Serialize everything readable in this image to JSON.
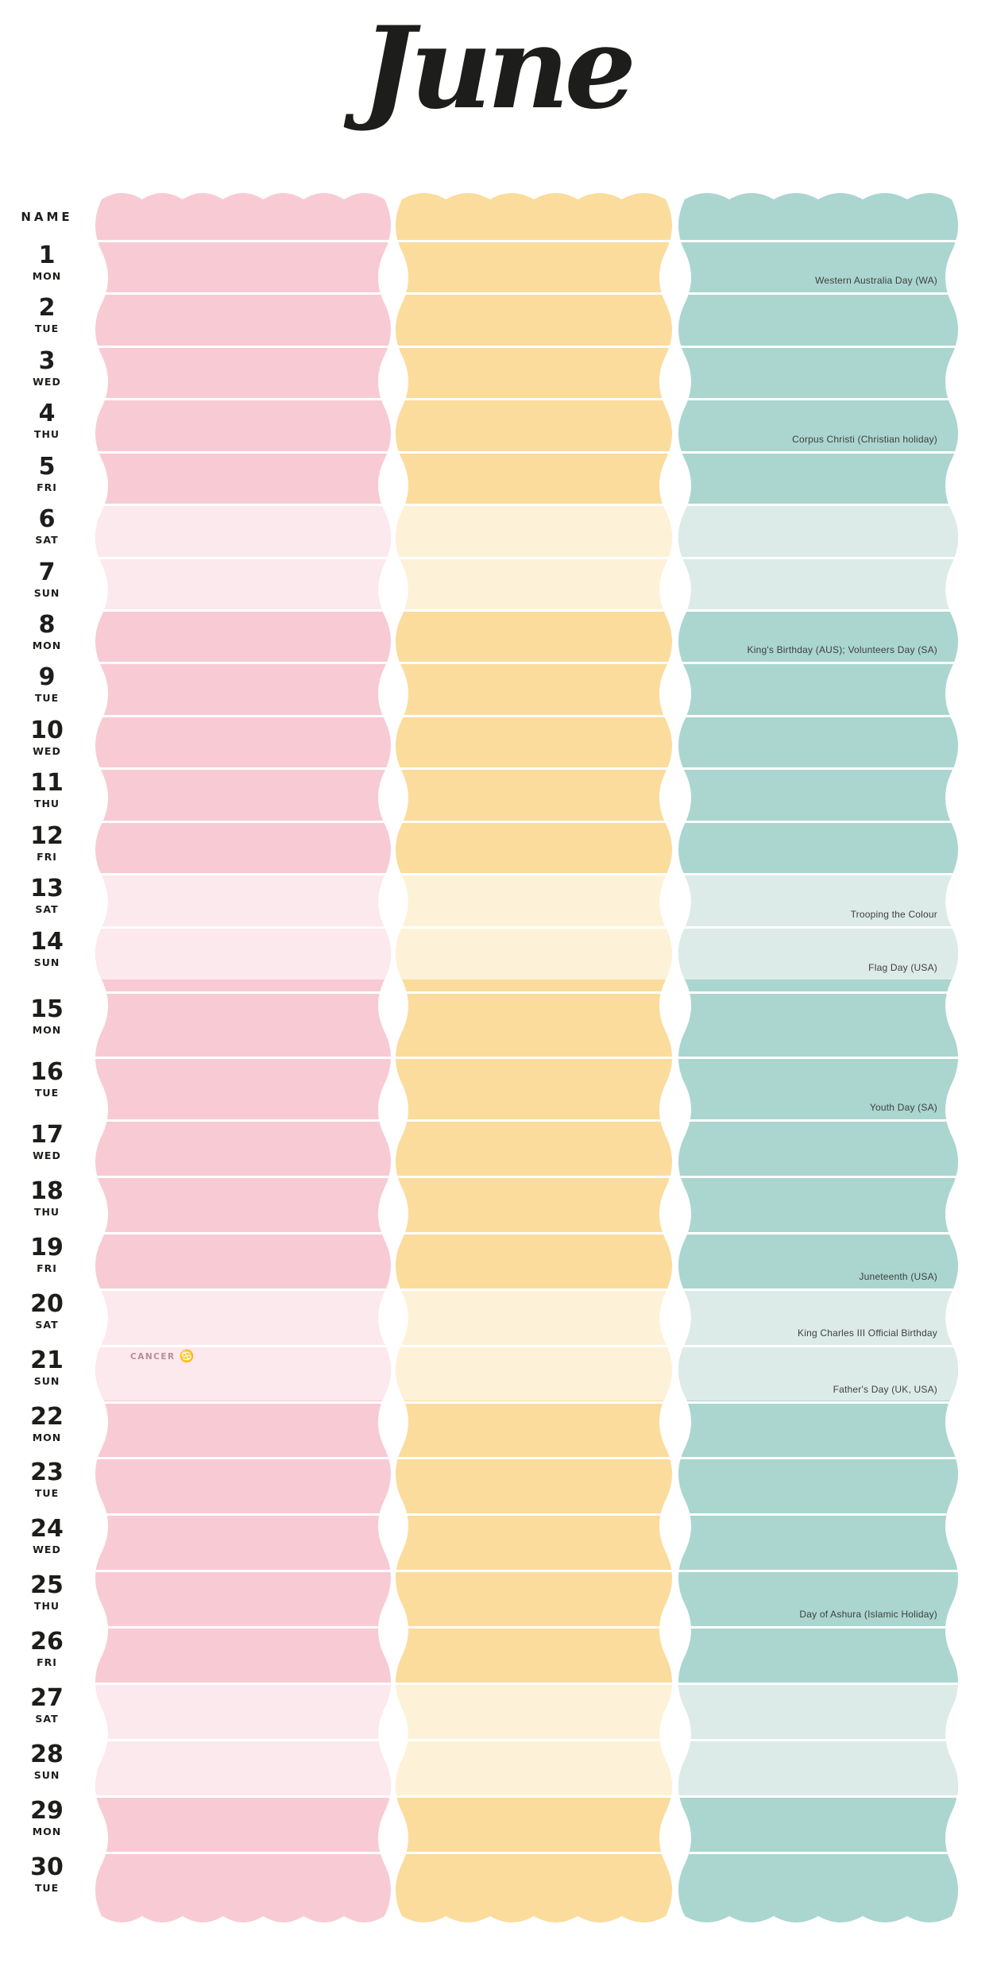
{
  "page": {
    "title": "June",
    "name_header": "NAME"
  },
  "colors": {
    "pink": "#f8cbd4",
    "pink_light": "#fce9ed",
    "yellow": "#fbdc9d",
    "yellow_light": "#fdf2d8",
    "teal": "#aad6cf",
    "teal_light": "#dcebe7",
    "separator": "#ffffff",
    "label_text": "#1d1d1b",
    "holiday_text": "#3f3f3f",
    "zodiac_text": "#b98d94"
  },
  "columns": [
    {
      "id": "pink"
    },
    {
      "id": "yellow"
    },
    {
      "id": "teal"
    }
  ],
  "days": [
    {
      "d": 1,
      "dow": "MON",
      "we": false,
      "hol": "Western Australia Day (WA)"
    },
    {
      "d": 2,
      "dow": "TUE",
      "we": false
    },
    {
      "d": 3,
      "dow": "WED",
      "we": false
    },
    {
      "d": 4,
      "dow": "THU",
      "we": false,
      "hol": "Corpus Christi (Christian holiday)"
    },
    {
      "d": 5,
      "dow": "FRI",
      "we": false
    },
    {
      "d": 6,
      "dow": "SAT",
      "we": true
    },
    {
      "d": 7,
      "dow": "SUN",
      "we": true
    },
    {
      "d": 8,
      "dow": "MON",
      "we": false,
      "hol": "King's Birthday (AUS); Volunteers Day (SA)"
    },
    {
      "d": 9,
      "dow": "TUE",
      "we": false
    },
    {
      "d": 10,
      "dow": "WED",
      "we": false
    },
    {
      "d": 11,
      "dow": "THU",
      "we": false
    },
    {
      "d": 12,
      "dow": "FRI",
      "we": false
    },
    {
      "d": 13,
      "dow": "SAT",
      "we": true,
      "hol": "Trooping the Colour"
    },
    {
      "d": 14,
      "dow": "SUN",
      "we": true,
      "hol": "Flag Day (USA)"
    },
    {
      "d": 15,
      "dow": "MON",
      "we": false
    },
    {
      "d": 16,
      "dow": "TUE",
      "we": false,
      "hol": "Youth Day (SA)"
    },
    {
      "d": 17,
      "dow": "WED",
      "we": false
    },
    {
      "d": 18,
      "dow": "THU",
      "we": false
    },
    {
      "d": 19,
      "dow": "FRI",
      "we": false,
      "hol": "Juneteenth (USA)"
    },
    {
      "d": 20,
      "dow": "SAT",
      "we": true,
      "hol": "King Charles III Official Birthday"
    },
    {
      "d": 21,
      "dow": "SUN",
      "we": true,
      "hol": "Father's Day (UK, USA)",
      "zodiac": {
        "label": "CANCER",
        "symbol": "♋"
      }
    },
    {
      "d": 22,
      "dow": "MON",
      "we": false
    },
    {
      "d": 23,
      "dow": "TUE",
      "we": false
    },
    {
      "d": 24,
      "dow": "WED",
      "we": false
    },
    {
      "d": 25,
      "dow": "THU",
      "we": false,
      "hol": "Day of Ashura (Islamic Holiday)"
    },
    {
      "d": 26,
      "dow": "FRI",
      "we": false
    },
    {
      "d": 27,
      "dow": "SAT",
      "we": true
    },
    {
      "d": 28,
      "dow": "SUN",
      "we": true
    },
    {
      "d": 29,
      "dow": "MON",
      "we": false
    },
    {
      "d": 30,
      "dow": "TUE",
      "we": false
    }
  ]
}
